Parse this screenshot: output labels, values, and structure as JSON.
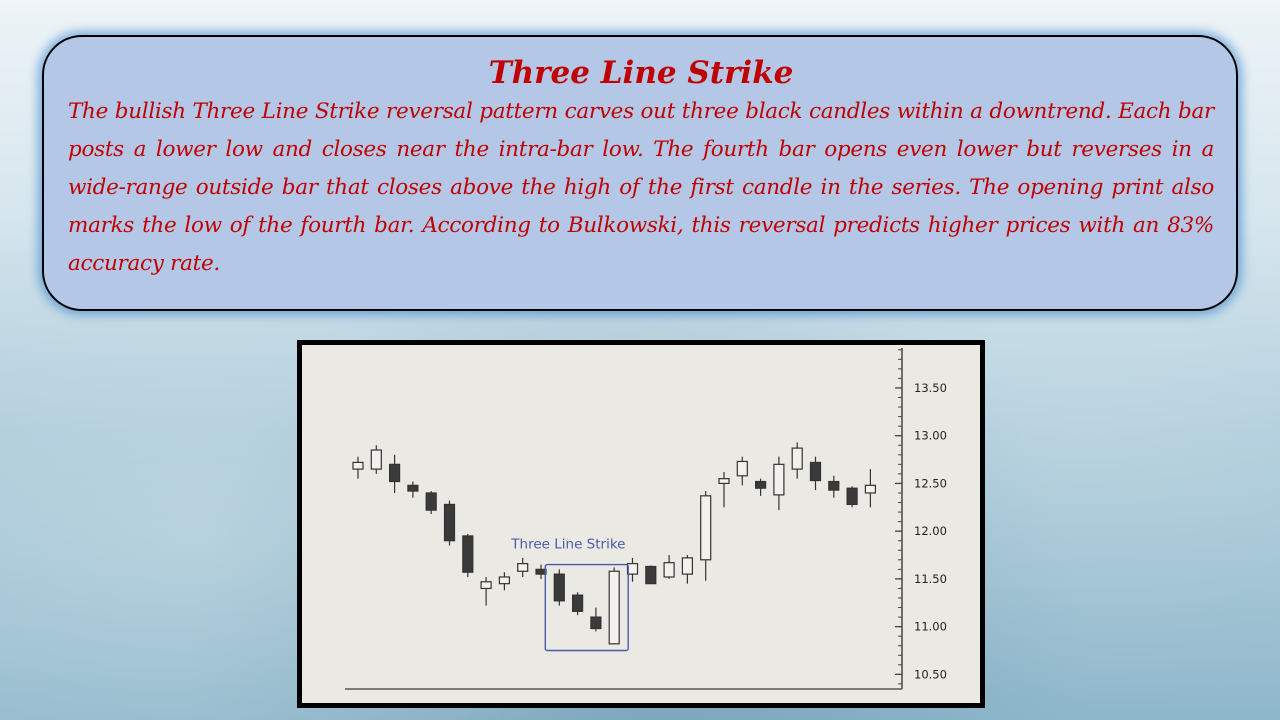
{
  "slide": {
    "title": "Three Line Strike",
    "body": "The bullish Three Line Strike reversal pattern carves out three black candles within a downtrend. Each bar posts a lower low and closes near the intra-bar low. The fourth bar opens even lower but reverses in a wide-range outside bar that closes above the high of the first candle in the series. The opening print also marks the low of the fourth bar. According to Bulkowski, this reversal predicts higher prices with an 83% accuracy rate."
  },
  "chart_data": {
    "type": "candlestick",
    "annotation": "Three Line Strike",
    "y_ticks": [
      "13.50",
      "13.00",
      "12.50",
      "12.00",
      "11.50",
      "11.00",
      "10.50"
    ],
    "ylim": [
      10.2,
      13.95
    ],
    "colors": {
      "bear": "#3a3a3a",
      "bull": "#f2f1ed",
      "outline": "#333333",
      "highlight": "#4a5aa8"
    },
    "candles": [
      {
        "o": 12.65,
        "h": 12.78,
        "l": 12.55,
        "c": 12.72
      },
      {
        "o": 12.65,
        "h": 12.9,
        "l": 12.6,
        "c": 12.85
      },
      {
        "o": 12.7,
        "h": 12.8,
        "l": 12.4,
        "c": 12.52
      },
      {
        "o": 12.48,
        "h": 12.52,
        "l": 12.35,
        "c": 12.42
      },
      {
        "o": 12.4,
        "h": 12.42,
        "l": 12.18,
        "c": 12.22
      },
      {
        "o": 12.28,
        "h": 12.32,
        "l": 11.85,
        "c": 11.9
      },
      {
        "o": 11.95,
        "h": 11.97,
        "l": 11.52,
        "c": 11.57
      },
      {
        "o": 11.4,
        "h": 11.52,
        "l": 11.22,
        "c": 11.47
      },
      {
        "o": 11.45,
        "h": 11.57,
        "l": 11.38,
        "c": 11.52
      },
      {
        "o": 11.58,
        "h": 11.72,
        "l": 11.52,
        "c": 11.66
      },
      {
        "o": 11.6,
        "h": 11.65,
        "l": 11.5,
        "c": 11.55
      },
      {
        "o": 11.55,
        "h": 11.6,
        "l": 11.22,
        "c": 11.27
      },
      {
        "o": 11.33,
        "h": 11.36,
        "l": 11.12,
        "c": 11.16
      },
      {
        "o": 11.1,
        "h": 11.2,
        "l": 10.95,
        "c": 10.98
      },
      {
        "o": 10.82,
        "h": 11.62,
        "l": 10.82,
        "c": 11.58
      },
      {
        "o": 11.55,
        "h": 11.72,
        "l": 11.47,
        "c": 11.66
      },
      {
        "o": 11.63,
        "h": 11.64,
        "l": 11.45,
        "c": 11.45
      },
      {
        "o": 11.52,
        "h": 11.75,
        "l": 11.5,
        "c": 11.67
      },
      {
        "o": 11.55,
        "h": 11.75,
        "l": 11.45,
        "c": 11.72
      },
      {
        "o": 11.7,
        "h": 12.42,
        "l": 11.48,
        "c": 12.37
      },
      {
        "o": 12.5,
        "h": 12.62,
        "l": 12.25,
        "c": 12.55
      },
      {
        "o": 12.58,
        "h": 12.78,
        "l": 12.48,
        "c": 12.73
      },
      {
        "o": 12.52,
        "h": 12.55,
        "l": 12.37,
        "c": 12.45
      },
      {
        "o": 12.38,
        "h": 12.78,
        "l": 12.22,
        "c": 12.7
      },
      {
        "o": 12.65,
        "h": 12.93,
        "l": 12.55,
        "c": 12.87
      },
      {
        "o": 12.72,
        "h": 12.78,
        "l": 12.43,
        "c": 12.53
      },
      {
        "o": 12.52,
        "h": 12.58,
        "l": 12.35,
        "c": 12.43
      },
      {
        "o": 12.45,
        "h": 12.47,
        "l": 12.25,
        "c": 12.28
      },
      {
        "o": 12.4,
        "h": 12.65,
        "l": 12.25,
        "c": 12.48
      }
    ]
  }
}
